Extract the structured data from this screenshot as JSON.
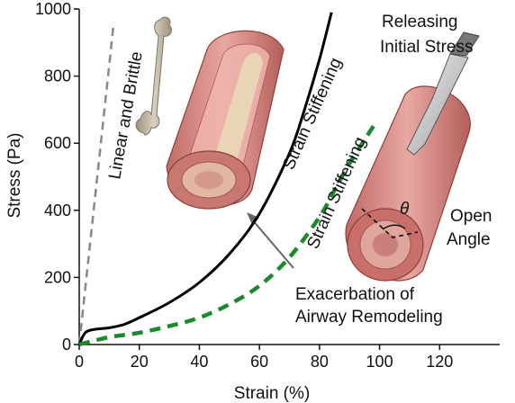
{
  "chart_data": {
    "type": "line",
    "xlabel": "Strain (%)",
    "ylabel": "Stress (Pa)",
    "xlim": [
      0,
      140
    ],
    "ylim": [
      0,
      1000
    ],
    "x_ticks": [
      0,
      20,
      40,
      60,
      80,
      100,
      120
    ],
    "y_ticks": [
      0,
      200,
      400,
      600,
      800,
      1000
    ],
    "series": [
      {
        "name": "",
        "style": "dashed",
        "color": "#888888",
        "x": [
          0,
          3,
          6,
          9,
          11.5
        ],
        "y": [
          0,
          250,
          500,
          750,
          960
        ]
      },
      {
        "name": "",
        "style": "solid",
        "color": "#000000",
        "x": [
          0,
          2,
          5,
          10,
          15,
          20,
          30,
          40,
          50,
          60,
          70,
          75,
          80,
          84
        ],
        "y": [
          0,
          35,
          45,
          50,
          60,
          80,
          125,
          185,
          270,
          390,
          570,
          700,
          850,
          990
        ]
      },
      {
        "name": "",
        "style": "dashed",
        "color": "#1a8a2e",
        "x": [
          0,
          10,
          20,
          30,
          40,
          50,
          60,
          70,
          80,
          85,
          90,
          95,
          99
        ],
        "y": [
          0,
          22,
          35,
          55,
          80,
          120,
          175,
          260,
          380,
          460,
          540,
          610,
          665
        ]
      }
    ],
    "annotations": [
      "Linear and Brittle",
      "Strain Stiffening",
      "Strain Stiffening",
      "Releasing",
      "Initial Stress",
      "Open",
      "Angle",
      "θ",
      "Exacerbation of",
      "Airway Remodeling"
    ],
    "grid": false,
    "legend": "none"
  },
  "icons": [
    "bone-icon",
    "airway-tube-icon",
    "opened-airway-icon",
    "scalpel-icon"
  ],
  "colors": {
    "linear": "#888888",
    "healthy": "#000000",
    "remodeled": "#1a8a2e",
    "tissue": "#d88b86",
    "tissue_dark": "#b55b58",
    "bone": "#b8ad9b"
  }
}
